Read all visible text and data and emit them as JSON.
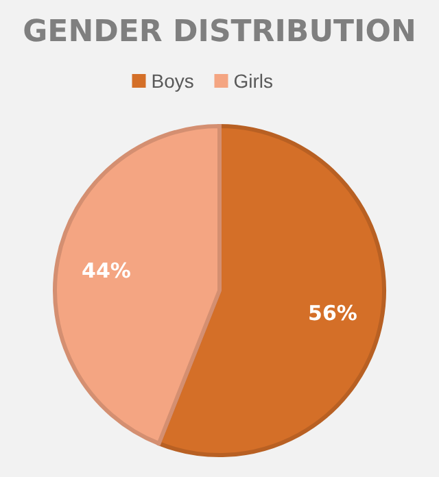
{
  "chart_data": {
    "type": "pie",
    "title": "GENDER DISTRIBUTION",
    "categories": [
      "Boys",
      "Girls"
    ],
    "values": [
      56,
      44
    ],
    "colors": [
      "#d46f28",
      "#f4a582"
    ],
    "data_labels": true,
    "value_labels": [
      "56%",
      "44%"
    ],
    "legend": "top"
  }
}
